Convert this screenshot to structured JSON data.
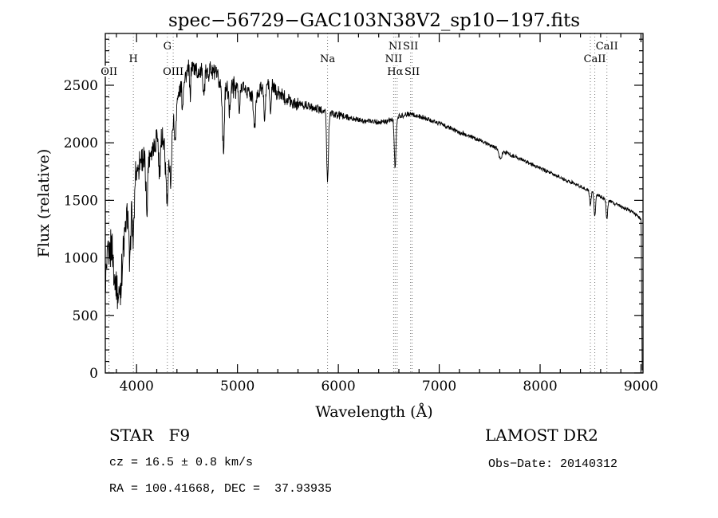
{
  "page": {
    "background": "#ffffff"
  },
  "chart_data": {
    "type": "line",
    "title": "spec−56729−GAC103N38V2_sp10−197.fits",
    "xlabel": "Wavelength (Å)",
    "ylabel": "Flux (relative)",
    "xlim": [
      3690,
      9020
    ],
    "ylim": [
      0,
      2950
    ],
    "x_ticks": [
      4000,
      5000,
      6000,
      7000,
      8000,
      9000
    ],
    "x_minor_step": 200,
    "y_ticks": [
      0,
      500,
      1000,
      1500,
      2000,
      2500
    ],
    "y_minor_step": 100,
    "sample_step_angstrom": 3,
    "line_color": "#000000",
    "marker_line_color": "#777777",
    "axis_color": "#000000",
    "legend": "none",
    "grid": "off",
    "continuum_anchor_points": [
      [
        3690,
        750
      ],
      [
        3710,
        1000
      ],
      [
        3730,
        1060
      ],
      [
        3755,
        1120
      ],
      [
        3785,
        820
      ],
      [
        3815,
        660
      ],
      [
        3845,
        780
      ],
      [
        3875,
        1130
      ],
      [
        3905,
        1380
      ],
      [
        3940,
        1450
      ],
      [
        3970,
        1620
      ],
      [
        4000,
        1760
      ],
      [
        4050,
        1860
      ],
      [
        4100,
        1820
      ],
      [
        4150,
        1960
      ],
      [
        4200,
        2060
      ],
      [
        4250,
        2010
      ],
      [
        4300,
        1870
      ],
      [
        4350,
        2160
      ],
      [
        4400,
        2360
      ],
      [
        4450,
        2510
      ],
      [
        4500,
        2620
      ],
      [
        4560,
        2660
      ],
      [
        4620,
        2610
      ],
      [
        4680,
        2590
      ],
      [
        4740,
        2640
      ],
      [
        4800,
        2570
      ],
      [
        4860,
        2430
      ],
      [
        4920,
        2500
      ],
      [
        4980,
        2480
      ],
      [
        5040,
        2500
      ],
      [
        5100,
        2440
      ],
      [
        5160,
        2400
      ],
      [
        5220,
        2460
      ],
      [
        5280,
        2520
      ],
      [
        5340,
        2500
      ],
      [
        5400,
        2430
      ],
      [
        5460,
        2400
      ],
      [
        5520,
        2370
      ],
      [
        5580,
        2350
      ],
      [
        5640,
        2330
      ],
      [
        5700,
        2320
      ],
      [
        5760,
        2300
      ],
      [
        5820,
        2290
      ],
      [
        5880,
        2270
      ],
      [
        5940,
        2250
      ],
      [
        6000,
        2240
      ],
      [
        6100,
        2220
      ],
      [
        6200,
        2200
      ],
      [
        6300,
        2190
      ],
      [
        6400,
        2180
      ],
      [
        6500,
        2190
      ],
      [
        6600,
        2230
      ],
      [
        6700,
        2250
      ],
      [
        6800,
        2230
      ],
      [
        6900,
        2200
      ],
      [
        7000,
        2170
      ],
      [
        7100,
        2130
      ],
      [
        7200,
        2090
      ],
      [
        7300,
        2060
      ],
      [
        7400,
        2020
      ],
      [
        7500,
        1980
      ],
      [
        7600,
        1940
      ],
      [
        7700,
        1900
      ],
      [
        7800,
        1860
      ],
      [
        7900,
        1820
      ],
      [
        8000,
        1780
      ],
      [
        8100,
        1740
      ],
      [
        8200,
        1700
      ],
      [
        8300,
        1660
      ],
      [
        8400,
        1620
      ],
      [
        8500,
        1580
      ],
      [
        8600,
        1530
      ],
      [
        8700,
        1490
      ],
      [
        8800,
        1450
      ],
      [
        8900,
        1405
      ],
      [
        8960,
        1375
      ],
      [
        9002,
        1330
      ],
      [
        9008,
        500
      ],
      [
        9012,
        40
      ],
      [
        9020,
        15
      ]
    ],
    "absorption_lines": [
      {
        "wavelength": 3933,
        "depth": 500,
        "width": 12
      },
      {
        "wavelength": 3968,
        "depth": 450,
        "width": 12
      },
      {
        "wavelength": 4101,
        "depth": 380,
        "width": 12
      },
      {
        "wavelength": 4226,
        "depth": 300,
        "width": 10
      },
      {
        "wavelength": 4305,
        "depth": 400,
        "width": 16
      },
      {
        "wavelength": 4340,
        "depth": 420,
        "width": 12
      },
      {
        "wavelength": 4383,
        "depth": 300,
        "width": 10
      },
      {
        "wavelength": 4455,
        "depth": 220,
        "width": 8
      },
      {
        "wavelength": 4531,
        "depth": 220,
        "width": 8
      },
      {
        "wavelength": 4668,
        "depth": 200,
        "width": 8
      },
      {
        "wavelength": 4861,
        "depth": 480,
        "width": 12
      },
      {
        "wavelength": 4920,
        "depth": 250,
        "width": 10
      },
      {
        "wavelength": 5018,
        "depth": 250,
        "width": 10
      },
      {
        "wavelength": 5170,
        "depth": 280,
        "width": 14
      },
      {
        "wavelength": 5270,
        "depth": 300,
        "width": 12
      },
      {
        "wavelength": 5328,
        "depth": 250,
        "width": 10
      },
      {
        "wavelength": 5893,
        "depth": 600,
        "width": 12
      },
      {
        "wavelength": 6563,
        "depth": 430,
        "width": 12
      },
      {
        "wavelength": 7605,
        "depth": 80,
        "width": 18
      },
      {
        "wavelength": 8498,
        "depth": 130,
        "width": 10
      },
      {
        "wavelength": 8542,
        "depth": 200,
        "width": 10
      },
      {
        "wavelength": 8662,
        "depth": 170,
        "width": 10
      }
    ],
    "noise_segments": [
      {
        "range": [
          3690,
          3900
        ],
        "amplitude": 210
      },
      {
        "range": [
          3900,
          4300
        ],
        "amplitude": 180
      },
      {
        "range": [
          4300,
          5000
        ],
        "amplitude": 110
      },
      {
        "range": [
          5000,
          5600
        ],
        "amplitude": 80
      },
      {
        "range": [
          5600,
          6100
        ],
        "amplitude": 45
      },
      {
        "range": [
          6100,
          6900
        ],
        "amplitude": 30
      },
      {
        "range": [
          6900,
          7800
        ],
        "amplitude": 24
      },
      {
        "range": [
          7800,
          9021
        ],
        "amplitude": 20
      }
    ],
    "spectral_markers": [
      {
        "wavelength": 3727,
        "label": "OII",
        "row": 3
      },
      {
        "wavelength": 3968,
        "label": "H",
        "row": 2
      },
      {
        "wavelength": 4305,
        "label": "G",
        "row": 1
      },
      {
        "wavelength": 4363,
        "label": "OIII",
        "row": 3
      },
      {
        "wavelength": 5893,
        "label": "Na",
        "row": 2
      },
      {
        "wavelength": 6548,
        "label": "NII",
        "row": 2
      },
      {
        "wavelength": 6563,
        "label": "Hα",
        "row": 3
      },
      {
        "wavelength": 6583,
        "label": "NII",
        "row": 1
      },
      {
        "wavelength": 6716,
        "label": "SII",
        "row": 1
      },
      {
        "wavelength": 6731,
        "label": "SII",
        "row": 3
      },
      {
        "wavelength": 8498,
        "label": "",
        "row": 0
      },
      {
        "wavelength": 8542,
        "label": "CaII",
        "row": 2
      },
      {
        "wavelength": 8662,
        "label": "CaII",
        "row": 1
      }
    ]
  },
  "annotations": {
    "classification": "STAR   F9",
    "survey": "LAMOST DR2",
    "cz": "cz = 16.5 ± 0.8 km/s",
    "obs_date": "Obs−Date: 20140312",
    "ra_dec": "RA = 100.41668, DEC =  37.93935"
  }
}
